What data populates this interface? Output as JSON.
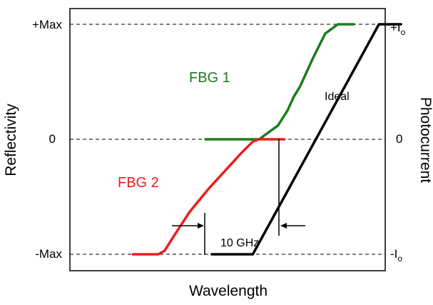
{
  "chart_data": {
    "type": "line",
    "xlabel": "Wavelength",
    "ylabel": "Reflectivity",
    "ylabel_right": "Photocurrent",
    "ylim": [
      -1,
      1
    ],
    "y_ticks_left": [
      "+Max",
      "0",
      "-Max"
    ],
    "y_ticks_right": [
      "+I",
      "0",
      "-I"
    ],
    "y_ticks_right_sub": [
      "o",
      "",
      "o"
    ],
    "grid": "dashed lines at +Max, 0 and -Max",
    "series": [
      {
        "name": "FBG 1",
        "color": "#1e7b1e",
        "x": [
          0.43,
          0.6,
          0.66,
          0.69,
          0.71,
          0.73,
          0.77,
          0.81,
          0.85,
          0.9
        ],
        "y": [
          0,
          0,
          0.12,
          0.25,
          0.37,
          0.46,
          0.7,
          0.92,
          1,
          1
        ]
      },
      {
        "name": "FBG 2",
        "color": "#ee1c1c",
        "x": [
          0.2,
          0.28,
          0.3,
          0.33,
          0.38,
          0.44,
          0.5,
          0.54,
          0.58,
          0.6,
          0.68
        ],
        "y": [
          -1,
          -1,
          -0.97,
          -0.84,
          -0.63,
          -0.43,
          -0.25,
          -0.13,
          -0.02,
          0,
          0
        ]
      },
      {
        "name": "Ideal",
        "color": "#000000",
        "x": [
          0.45,
          0.58,
          0.98,
          1.05
        ],
        "y": [
          -1,
          -1,
          1,
          1
        ]
      }
    ],
    "annotations": {
      "spacing_label": "10 GHz"
    }
  }
}
